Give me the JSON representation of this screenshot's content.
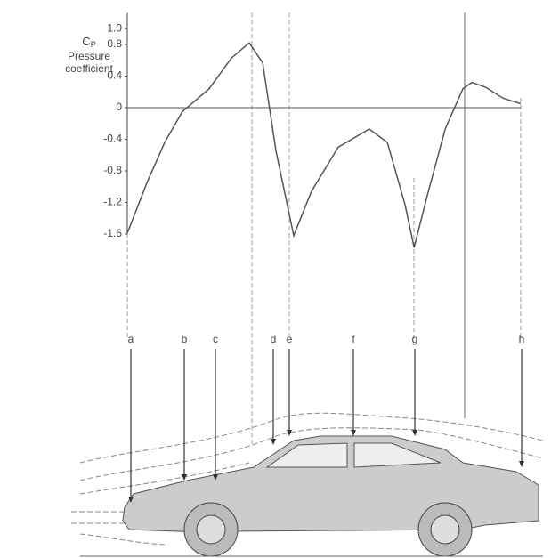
{
  "chart_data": {
    "type": "line",
    "y_label_symbol": "C",
    "y_label_subscript": "P",
    "y_label": "Pressure coefficient",
    "x": [
      0,
      5,
      9.5,
      14,
      20.8,
      26.5,
      31,
      34.4,
      37.8,
      42.3,
      46.8,
      53.6,
      61.5,
      66.1,
      70.6,
      72.9,
      76.2,
      80.8,
      85.3,
      87.6,
      91,
      95.5,
      100
    ],
    "values": [
      -1.59,
      -0.95,
      -0.44,
      -0.05,
      0.24,
      0.63,
      0.82,
      0.57,
      -0.55,
      -1.62,
      -1.06,
      -0.5,
      -0.27,
      -0.44,
      -1.23,
      -1.77,
      -1.12,
      -0.27,
      0.24,
      0.32,
      0.26,
      0.12,
      0.05
    ],
    "color": "#555",
    "xlim": [
      0,
      100
    ],
    "ylim": [
      -1.6,
      1.2
    ],
    "yticks": [
      {
        "value": 1.0,
        "label": "1.0"
      },
      0.8,
      0.4,
      0,
      -0.4,
      -0.8,
      -1.2,
      -1.6
    ],
    "grid": false,
    "stations": [
      "a",
      "b",
      "c",
      "d",
      "e",
      "f",
      "g",
      "h"
    ]
  }
}
